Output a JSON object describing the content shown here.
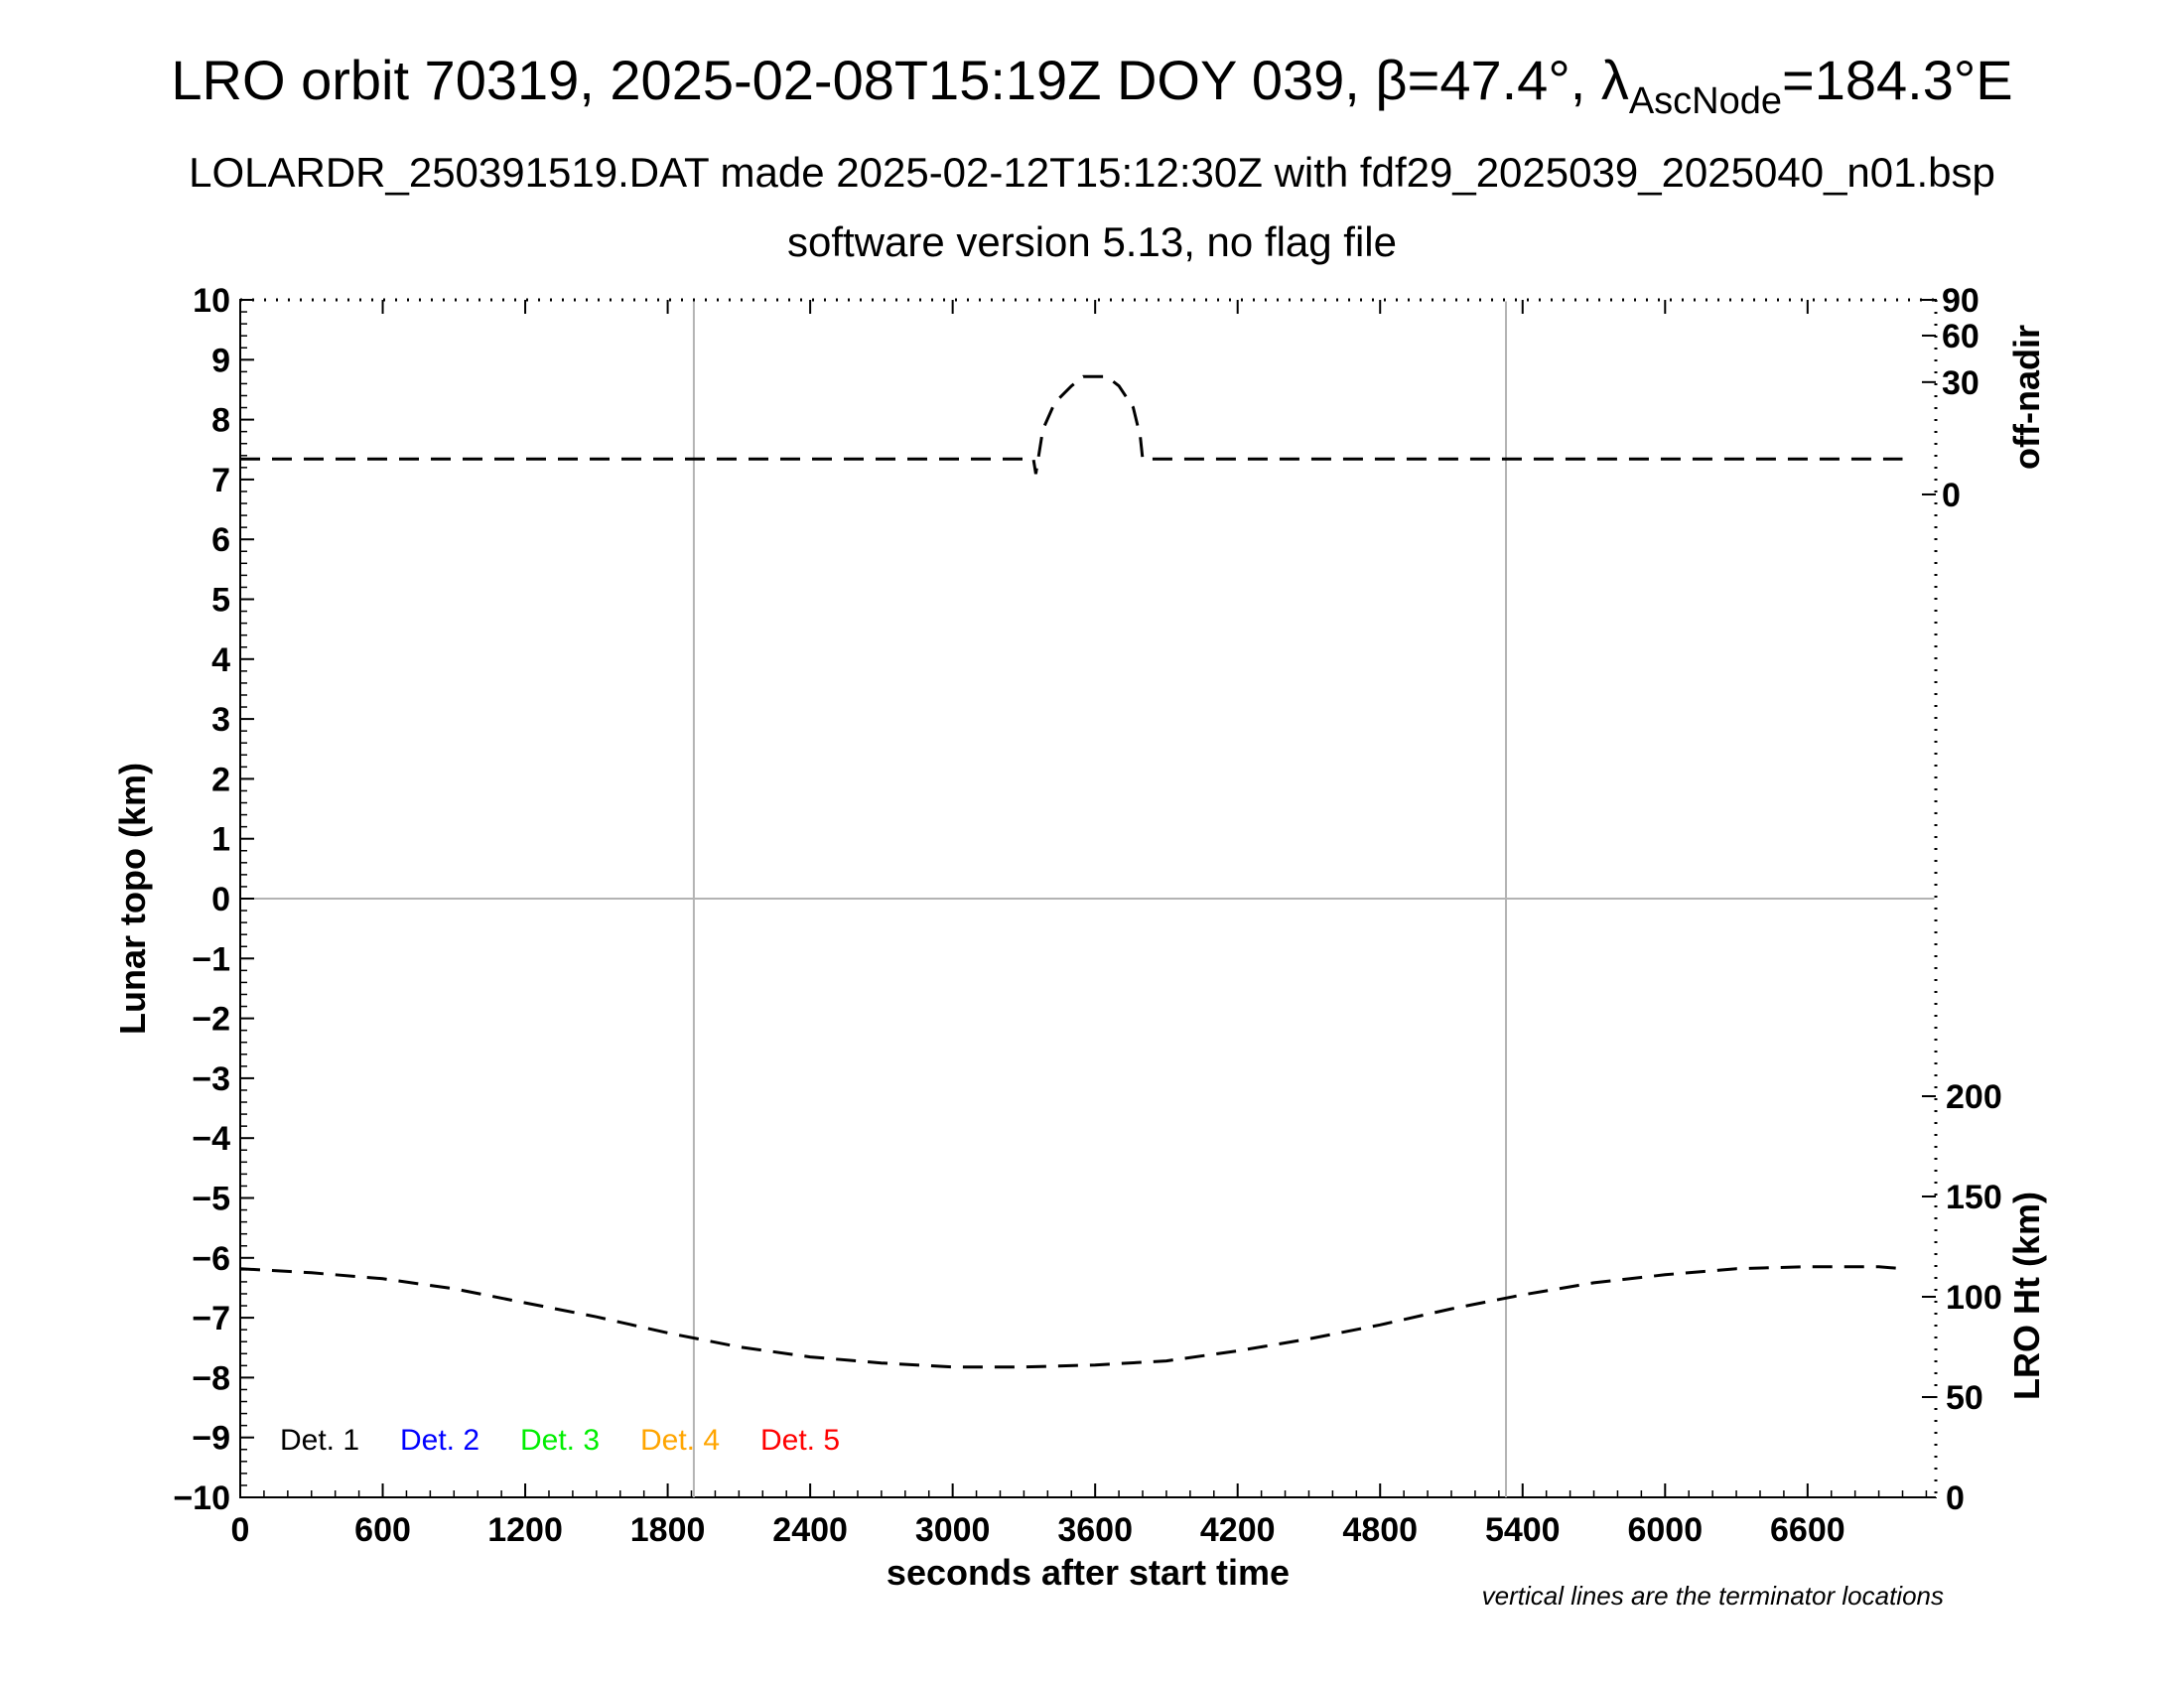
{
  "header": {
    "title_main": "LRO orbit 70319, 2025-02-08T15:19Z DOY 039, β=47.4°, λ",
    "title_sub": "AscNode",
    "title_end": "=184.3°E",
    "subtitle1": "LOLARDR_250391519.DAT made 2025-02-12T15:12:30Z with fdf29_2025039_2025040_n01.bsp",
    "subtitle2": "software version 5.13, no flag file"
  },
  "note": "vertical lines are the terminator locations",
  "chart_data": {
    "type": "line",
    "xlabel": "seconds after start time",
    "ylabel": "Lunar topo (km)",
    "y2label_top": "off-nadir",
    "y2label_bottom": "LRO Ht (km)",
    "xlim": [
      0,
      7140
    ],
    "ylim": [
      -10,
      10
    ],
    "x_ticks": [
      "0",
      "600",
      "1200",
      "1800",
      "2400",
      "3000",
      "3600",
      "4200",
      "4800",
      "5400",
      "6000",
      "6600"
    ],
    "y_ticks": [
      "10",
      "9",
      "8",
      "7",
      "6",
      "5",
      "4",
      "3",
      "2",
      "1",
      "0",
      "−1",
      "−2",
      "−3",
      "−4",
      "−5",
      "−6",
      "−7",
      "−8",
      "−9",
      "−10"
    ],
    "offnadir_ticks": [
      "90",
      "60",
      "30",
      "0"
    ],
    "height_ticks": [
      "200",
      "150",
      "100",
      "50",
      "0"
    ],
    "terminators_x": [
      1910,
      5330
    ],
    "zero_line_y": 0,
    "legend": [
      {
        "label": "Det. 1",
        "color": "#000000"
      },
      {
        "label": "Det. 2",
        "color": "#0000ff"
      },
      {
        "label": "Det. 3",
        "color": "#00ee00"
      },
      {
        "label": "Det. 4",
        "color": "#ffa500"
      },
      {
        "label": "Det. 5",
        "color": "#ff0000"
      }
    ],
    "series": [
      {
        "name": "off-nadir",
        "axis": "off-nadir (deg)",
        "style": "dashed",
        "points": [
          [
            0,
            3
          ],
          [
            600,
            3
          ],
          [
            1200,
            3
          ],
          [
            1800,
            3
          ],
          [
            2400,
            3
          ],
          [
            3000,
            3
          ],
          [
            3340,
            3
          ],
          [
            3350,
            1
          ],
          [
            3380,
            10
          ],
          [
            3430,
            20
          ],
          [
            3500,
            28
          ],
          [
            3550,
            33
          ],
          [
            3650,
            33
          ],
          [
            3700,
            28
          ],
          [
            3760,
            18
          ],
          [
            3790,
            8
          ],
          [
            3800,
            3
          ],
          [
            4200,
            3
          ],
          [
            4800,
            3
          ],
          [
            5400,
            3
          ],
          [
            6000,
            3
          ],
          [
            6600,
            3
          ],
          [
            7000,
            3
          ]
        ]
      },
      {
        "name": "LRO Ht",
        "axis": "LRO Ht (km)",
        "style": "dashed",
        "points": [
          [
            0,
            114
          ],
          [
            300,
            112
          ],
          [
            600,
            109
          ],
          [
            900,
            104
          ],
          [
            1200,
            97
          ],
          [
            1500,
            90
          ],
          [
            1800,
            82
          ],
          [
            2100,
            75
          ],
          [
            2400,
            70
          ],
          [
            2700,
            67
          ],
          [
            3000,
            65
          ],
          [
            3300,
            65
          ],
          [
            3600,
            66
          ],
          [
            3900,
            68
          ],
          [
            4200,
            73
          ],
          [
            4500,
            79
          ],
          [
            4800,
            86
          ],
          [
            5100,
            94
          ],
          [
            5400,
            101
          ],
          [
            5700,
            107
          ],
          [
            6000,
            111
          ],
          [
            6300,
            114
          ],
          [
            6600,
            115
          ],
          [
            6900,
            115
          ],
          [
            7000,
            114
          ]
        ]
      }
    ]
  }
}
